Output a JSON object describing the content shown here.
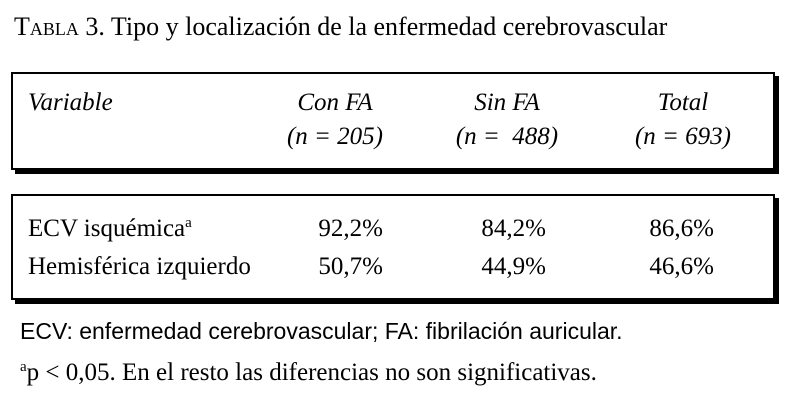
{
  "header": {
    "label": "Tabla 3.",
    "title": "Tipo y localización de la enfermedad cerebrovascular"
  },
  "table": {
    "columns": [
      {
        "label": "Variable"
      },
      {
        "label": "Con FA",
        "n": "(n = 205)"
      },
      {
        "label": "Sin FA",
        "n": "(n =  488)"
      },
      {
        "label": "Total",
        "n": "(n = 693)"
      }
    ],
    "rows": [
      {
        "0": "ECV isquémica",
        "mark": "a",
        "1": "92,2%",
        "2": "84,2%",
        "3": "86,6%"
      },
      {
        "0": "Hemisférica izquierdo",
        "1": "50,7%",
        "2": "44,9%",
        "3": "46,6%"
      }
    ]
  },
  "footnotes": [
    "ECV: enfermedad cerebrovascular; FA: fibrilación auricular.",
    {
      "mark": "a",
      "text": "p < 0,05. En el resto las diferencias no son significativas."
    }
  ]
}
